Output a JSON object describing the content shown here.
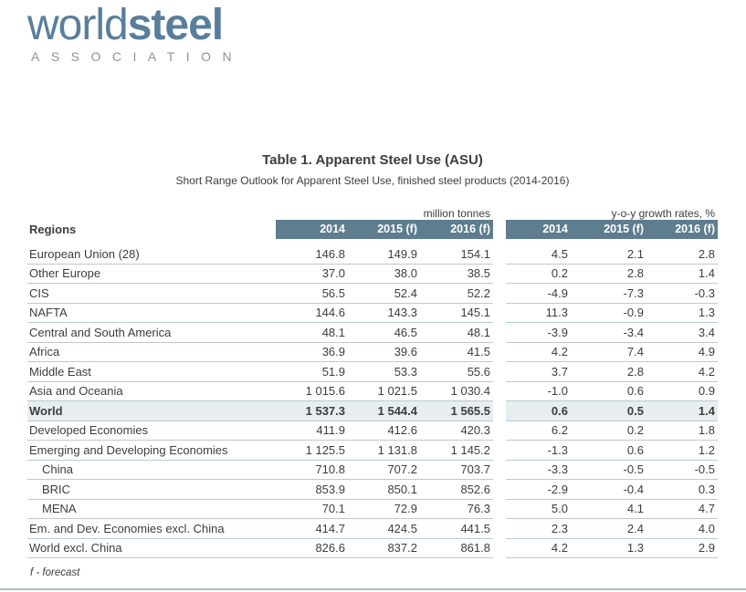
{
  "logo": {
    "world": "world",
    "steel": "steel",
    "association": "ASSOCIATION"
  },
  "title": "Table 1. Apparent Steel Use (ASU)",
  "subtitle": "Short Range Outlook for Apparent Steel Use, finished steel products (2014-2016)",
  "footnote": "f - forecast",
  "colors": {
    "logo_blue": "#587e9c",
    "header_band": "#5e7d8e",
    "row_border": "#b9cad4",
    "world_row_shading": "#e8edf0",
    "text": "#3d3d3d"
  },
  "table": {
    "regions_header": "Regions",
    "group1_label": "million tonnes",
    "group2_label": "y-o-y growth rates, %",
    "year_headers": [
      "2014",
      "2015 (f)",
      "2016 (f)"
    ],
    "rows": [
      {
        "region": "European Union (28)",
        "tonnes": [
          "146.8",
          "149.9",
          "154.1"
        ],
        "growth": [
          "4.5",
          "2.1",
          "2.8"
        ],
        "bold": false,
        "indent": false,
        "shaded": false
      },
      {
        "region": "Other Europe",
        "tonnes": [
          "37.0",
          "38.0",
          "38.5"
        ],
        "growth": [
          "0.2",
          "2.8",
          "1.4"
        ],
        "bold": false,
        "indent": false,
        "shaded": false
      },
      {
        "region": "CIS",
        "tonnes": [
          "56.5",
          "52.4",
          "52.2"
        ],
        "growth": [
          "-4.9",
          "-7.3",
          "-0.3"
        ],
        "bold": false,
        "indent": false,
        "shaded": false
      },
      {
        "region": "NAFTA",
        "tonnes": [
          "144.6",
          "143.3",
          "145.1"
        ],
        "growth": [
          "11.3",
          "-0.9",
          "1.3"
        ],
        "bold": false,
        "indent": false,
        "shaded": false
      },
      {
        "region": "Central and South America",
        "tonnes": [
          "48.1",
          "46.5",
          "48.1"
        ],
        "growth": [
          "-3.9",
          "-3.4",
          "3.4"
        ],
        "bold": false,
        "indent": false,
        "shaded": false
      },
      {
        "region": "Africa",
        "tonnes": [
          "36.9",
          "39.6",
          "41.5"
        ],
        "growth": [
          "4.2",
          "7.4",
          "4.9"
        ],
        "bold": false,
        "indent": false,
        "shaded": false
      },
      {
        "region": "Middle East",
        "tonnes": [
          "51.9",
          "53.3",
          "55.6"
        ],
        "growth": [
          "3.7",
          "2.8",
          "4.2"
        ],
        "bold": false,
        "indent": false,
        "shaded": false
      },
      {
        "region": "Asia and Oceania",
        "tonnes": [
          "1 015.6",
          "1 021.5",
          "1 030.4"
        ],
        "growth": [
          "-1.0",
          "0.6",
          "0.9"
        ],
        "bold": false,
        "indent": false,
        "shaded": false
      },
      {
        "region": "World",
        "tonnes": [
          "1 537.3",
          "1 544.4",
          "1 565.5"
        ],
        "growth": [
          "0.6",
          "0.5",
          "1.4"
        ],
        "bold": true,
        "indent": false,
        "shaded": true
      },
      {
        "region": "Developed Economies",
        "tonnes": [
          "411.9",
          "412.6",
          "420.3"
        ],
        "growth": [
          "6.2",
          "0.2",
          "1.8"
        ],
        "bold": false,
        "indent": false,
        "shaded": false
      },
      {
        "region": "Emerging and Developing Economies",
        "tonnes": [
          "1 125.5",
          "1 131.8",
          "1 145.2"
        ],
        "growth": [
          "-1.3",
          "0.6",
          "1.2"
        ],
        "bold": false,
        "indent": false,
        "shaded": false
      },
      {
        "region": "China",
        "tonnes": [
          "710.8",
          "707.2",
          "703.7"
        ],
        "growth": [
          "-3.3",
          "-0.5",
          "-0.5"
        ],
        "bold": false,
        "indent": true,
        "shaded": false
      },
      {
        "region": "BRIC",
        "tonnes": [
          "853.9",
          "850.1",
          "852.6"
        ],
        "growth": [
          "-2.9",
          "-0.4",
          "0.3"
        ],
        "bold": false,
        "indent": true,
        "shaded": false
      },
      {
        "region": "MENA",
        "tonnes": [
          "70.1",
          "72.9",
          "76.3"
        ],
        "growth": [
          "5.0",
          "4.1",
          "4.7"
        ],
        "bold": false,
        "indent": true,
        "shaded": false
      },
      {
        "region": "Em. and Dev. Economies excl. China",
        "tonnes": [
          "414.7",
          "424.5",
          "441.5"
        ],
        "growth": [
          "2.3",
          "2.4",
          "4.0"
        ],
        "bold": false,
        "indent": false,
        "shaded": false
      },
      {
        "region": "World excl. China",
        "tonnes": [
          "826.6",
          "837.2",
          "861.8"
        ],
        "growth": [
          "4.2",
          "1.3",
          "2.9"
        ],
        "bold": false,
        "indent": false,
        "shaded": false
      }
    ]
  }
}
